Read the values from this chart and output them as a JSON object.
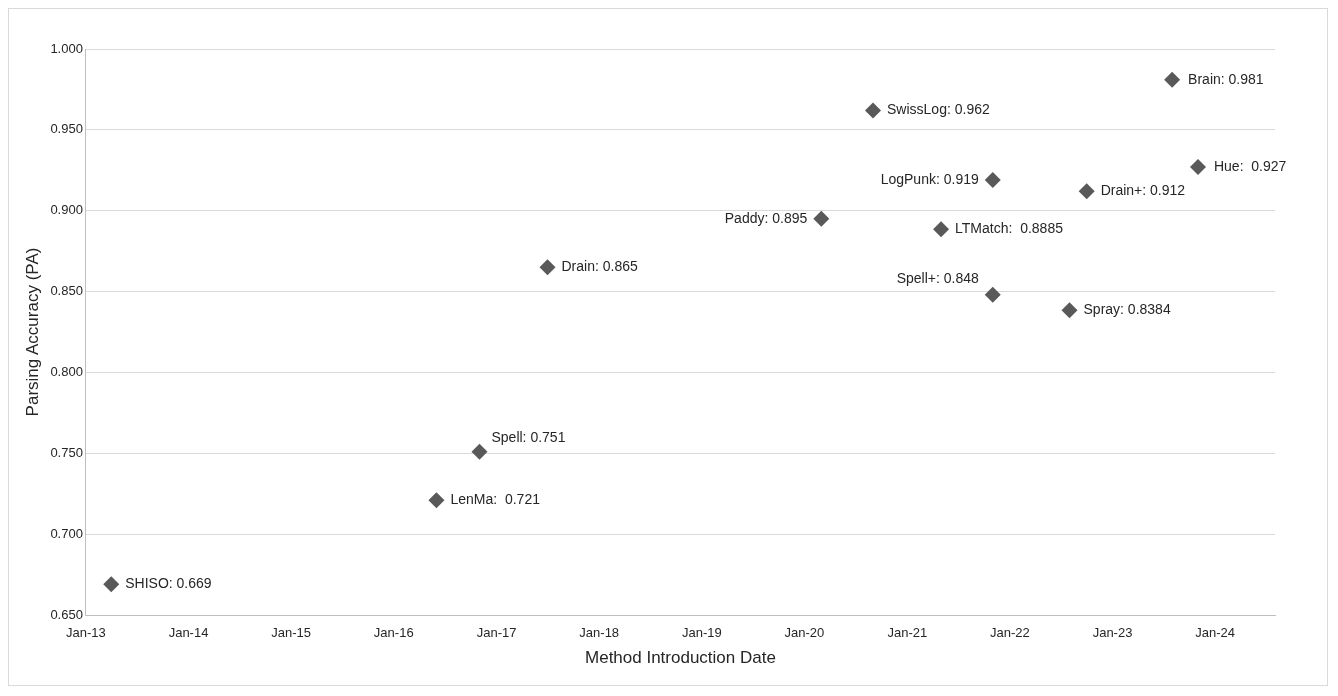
{
  "chart_data": {
    "type": "scatter",
    "xlabel": "Method Introduction Date",
    "ylabel": "Parsing Accuracy (PA)",
    "x": [
      "2013-04",
      "2016-06",
      "2016-11",
      "2017-07",
      "2020-03",
      "2020-09",
      "2021-05",
      "2021-11",
      "2021-11",
      "2022-08",
      "2022-10",
      "2023-08",
      "2023-11"
    ],
    "values": [
      0.669,
      0.721,
      0.751,
      0.865,
      0.895,
      0.962,
      0.8885,
      0.919,
      0.848,
      0.8384,
      0.912,
      0.981,
      0.927
    ],
    "value_labels": [
      "SHISO: 0.669",
      "LenMa:  0.721",
      "Spell: 0.751",
      "Drain: 0.865",
      "Paddy: 0.895",
      "SwissLog: 0.962",
      "LTMatch:  0.8885",
      "LogPunk: 0.919",
      "Spell+: 0.848",
      "Spray: 0.8384",
      "Drain+: 0.912",
      "Brain: 0.981",
      "Hue:  0.927"
    ],
    "color": "#595959",
    "marker": "diamond",
    "grid": "y",
    "legend": false,
    "xlim": [
      "2013-01",
      "2024-08"
    ],
    "xticks": [
      {
        "value": "2013-01",
        "label": "Jan-13"
      },
      {
        "value": "2014-01",
        "label": "Jan-14"
      },
      {
        "value": "2015-01",
        "label": "Jan-15"
      },
      {
        "value": "2016-01",
        "label": "Jan-16"
      },
      {
        "value": "2017-01",
        "label": "Jan-17"
      },
      {
        "value": "2018-01",
        "label": "Jan-18"
      },
      {
        "value": "2019-01",
        "label": "Jan-19"
      },
      {
        "value": "2020-01",
        "label": "Jan-20"
      },
      {
        "value": "2021-01",
        "label": "Jan-21"
      },
      {
        "value": "2022-01",
        "label": "Jan-22"
      },
      {
        "value": "2023-01",
        "label": "Jan-23"
      },
      {
        "value": "2024-01",
        "label": "Jan-24"
      }
    ],
    "ylim": [
      0.65,
      1.0
    ],
    "yticks": [
      {
        "value": 0.65,
        "label": "0.650"
      },
      {
        "value": 0.7,
        "label": "0.700"
      },
      {
        "value": 0.75,
        "label": "0.750"
      },
      {
        "value": 0.8,
        "label": "0.800"
      },
      {
        "value": 0.85,
        "label": "0.850"
      },
      {
        "value": 0.9,
        "label": "0.900"
      },
      {
        "value": 0.95,
        "label": "0.950"
      },
      {
        "value": 1.0,
        "label": "1.000"
      }
    ]
  }
}
